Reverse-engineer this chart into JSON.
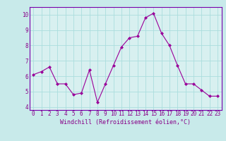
{
  "x": [
    0,
    1,
    2,
    3,
    4,
    5,
    6,
    7,
    8,
    9,
    10,
    11,
    12,
    13,
    14,
    15,
    16,
    17,
    18,
    19,
    20,
    21,
    22,
    23
  ],
  "y": [
    6.1,
    6.3,
    6.6,
    5.5,
    5.5,
    4.8,
    4.9,
    6.4,
    4.3,
    5.5,
    6.7,
    7.9,
    8.5,
    8.6,
    9.8,
    10.1,
    8.8,
    8.0,
    6.7,
    5.5,
    5.5,
    5.1,
    4.7,
    4.7
  ],
  "line_color": "#990099",
  "marker": "D",
  "marker_size": 2.0,
  "bg_color": "#c8eaea",
  "plot_bg": "#d8f0f0",
  "grid_color": "#aadddd",
  "xlabel": "Windchill (Refroidissement éolien,°C)",
  "xlabel_color": "#880088",
  "tick_color": "#880088",
  "ylabel_ticks": [
    4,
    5,
    6,
    7,
    8,
    9,
    10
  ],
  "xlim": [
    -0.5,
    23.5
  ],
  "ylim": [
    3.8,
    10.5
  ],
  "spine_color": "#7700aa",
  "tick_fontsize": 5.5,
  "xlabel_fontsize": 6.0
}
